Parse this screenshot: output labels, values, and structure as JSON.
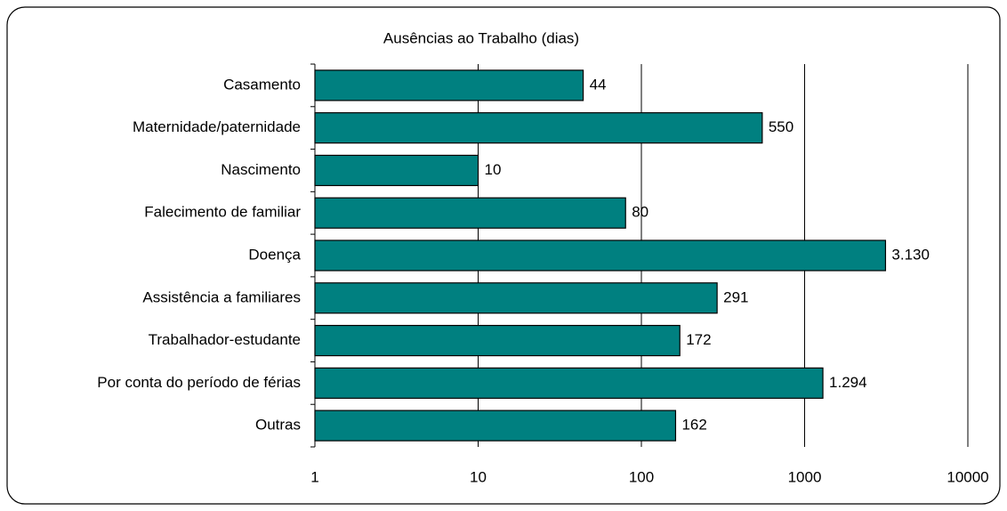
{
  "chart_data": {
    "type": "bar",
    "orientation": "horizontal",
    "title": "Ausências ao Trabalho (dias)",
    "categories": [
      "Casamento",
      "Maternidade/paternidade",
      "Nascimento",
      "Falecimento de familiar",
      "Doença",
      "Assistência a familiares",
      "Trabalhador-estudante",
      "Por conta do período de férias",
      "Outras"
    ],
    "values": [
      44,
      550,
      10,
      80,
      3130,
      291,
      172,
      1294,
      162
    ],
    "value_labels": [
      "44",
      "550",
      "10",
      "80",
      "3.130",
      "291",
      "172",
      "1.294",
      "162"
    ],
    "color": "#008080",
    "xlim": [
      1,
      10000
    ],
    "xticks": [
      1,
      10,
      100,
      1000,
      10000
    ],
    "log": true,
    "grid": true
  }
}
